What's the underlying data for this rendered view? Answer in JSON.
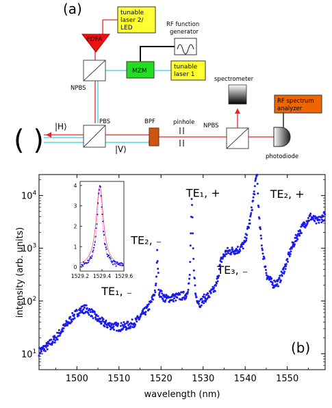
{
  "diagram": {
    "panel_a_label": "(a)",
    "components": {
      "tunable_laser_2": [
        "tunable",
        "laser 2/",
        "LED"
      ],
      "edfa": "EDFA",
      "rf_function_generator": [
        "RF function",
        "generator"
      ],
      "mzm": "MZM",
      "tunable_laser_1": [
        "tunable",
        "laser 1"
      ],
      "npbs_top": "NPBS",
      "pbs": "PBS",
      "bpf": "BPF",
      "pinhole": "pinhole",
      "npbs_right": "NPBS",
      "spectrometer": "spectrometer",
      "rf_spectrum_analyzer": [
        "RF spectrum",
        "analyzer"
      ],
      "photodiode": "photodiode",
      "ket_h": "|H⟩",
      "ket_v": "|V⟩",
      "cavity": "( )"
    },
    "colors": {
      "laser_box": "#ffff33",
      "mzm": "#22dd22",
      "edfa": "#ee1111",
      "rf_analyzer": "#ee6600",
      "bpf": "#cc5511",
      "beam_red": "#ee2222",
      "beam_cyan": "#33ccee"
    }
  },
  "chart_data": {
    "type": "scatter",
    "panel_label": "(b)",
    "xlabel": "wavelength (nm)",
    "ylabel": "intensity (arb. units)",
    "xlim": [
      1491,
      1559
    ],
    "ylim": [
      5,
      25000
    ],
    "yscale": "log",
    "xticks": [
      "1500",
      "1510",
      "1520",
      "1530",
      "1540",
      "1550"
    ],
    "yticks": [
      "10^1",
      "10^2",
      "10^3",
      "10^4"
    ],
    "color": "#1a1aee",
    "anchors": [
      [
        1491,
        11
      ],
      [
        1493,
        14
      ],
      [
        1495,
        20
      ],
      [
        1497,
        32
      ],
      [
        1499,
        50
      ],
      [
        1500.5,
        65
      ],
      [
        1502,
        72
      ],
      [
        1503.5,
        60
      ],
      [
        1505,
        45
      ],
      [
        1507,
        36
      ],
      [
        1510,
        32
      ],
      [
        1512,
        34
      ],
      [
        1514,
        40
      ],
      [
        1515.5,
        55
      ],
      [
        1517,
        75
      ],
      [
        1518,
        110
      ],
      [
        1518.8,
        180
      ],
      [
        1519.1,
        900
      ],
      [
        1519.5,
        150
      ],
      [
        1521,
        110
      ],
      [
        1524,
        120
      ],
      [
        1526,
        130
      ],
      [
        1526.8,
        250
      ],
      [
        1527.3,
        9000
      ],
      [
        1527.7,
        600
      ],
      [
        1528.2,
        130
      ],
      [
        1529.2,
        90
      ],
      [
        1530.2,
        110
      ],
      [
        1531.5,
        130
      ],
      [
        1533,
        180
      ],
      [
        1534.3,
        600
      ],
      [
        1535.5,
        850
      ],
      [
        1537,
        900
      ],
      [
        1538.5,
        950
      ],
      [
        1539.8,
        1200
      ],
      [
        1541.2,
        3500
      ],
      [
        1542.3,
        14000
      ],
      [
        1542.8,
        28000
      ],
      [
        1543.3,
        3500
      ],
      [
        1544.2,
        800
      ],
      [
        1545.2,
        300
      ],
      [
        1546.5,
        210
      ],
      [
        1548,
        230
      ],
      [
        1549.5,
        450
      ],
      [
        1551,
        1000
      ],
      [
        1552.5,
        1800
      ],
      [
        1554,
        2800
      ],
      [
        1555.5,
        4000
      ],
      [
        1557,
        3200
      ],
      [
        1559,
        4200
      ]
    ],
    "peak_labels": [
      {
        "text": "TE₁, ₋",
        "x": 1509.5,
        "y": 130
      },
      {
        "text": "TE₂, ₋",
        "x": 1516.5,
        "y": 1200
      },
      {
        "text": "TE₁, +",
        "x": 1530,
        "y": 9500
      },
      {
        "text": "TE₃, ₋",
        "x": 1537,
        "y": 330
      },
      {
        "text": "TE₂, +",
        "x": 1550,
        "y": 9000
      }
    ],
    "inset": {
      "type": "line",
      "xlim": [
        1529.2,
        1529.6
      ],
      "ylim": [
        -0.2,
        4.2
      ],
      "xticks": [
        "1529.2",
        "1529.4",
        "1529.6"
      ],
      "yticks": [
        "0",
        "1",
        "2",
        "3",
        "4"
      ],
      "center": 1529.38,
      "points_color": "#1a1aee",
      "fit_color": "#ee5555",
      "fit2_color": "#ff66ff"
    }
  }
}
